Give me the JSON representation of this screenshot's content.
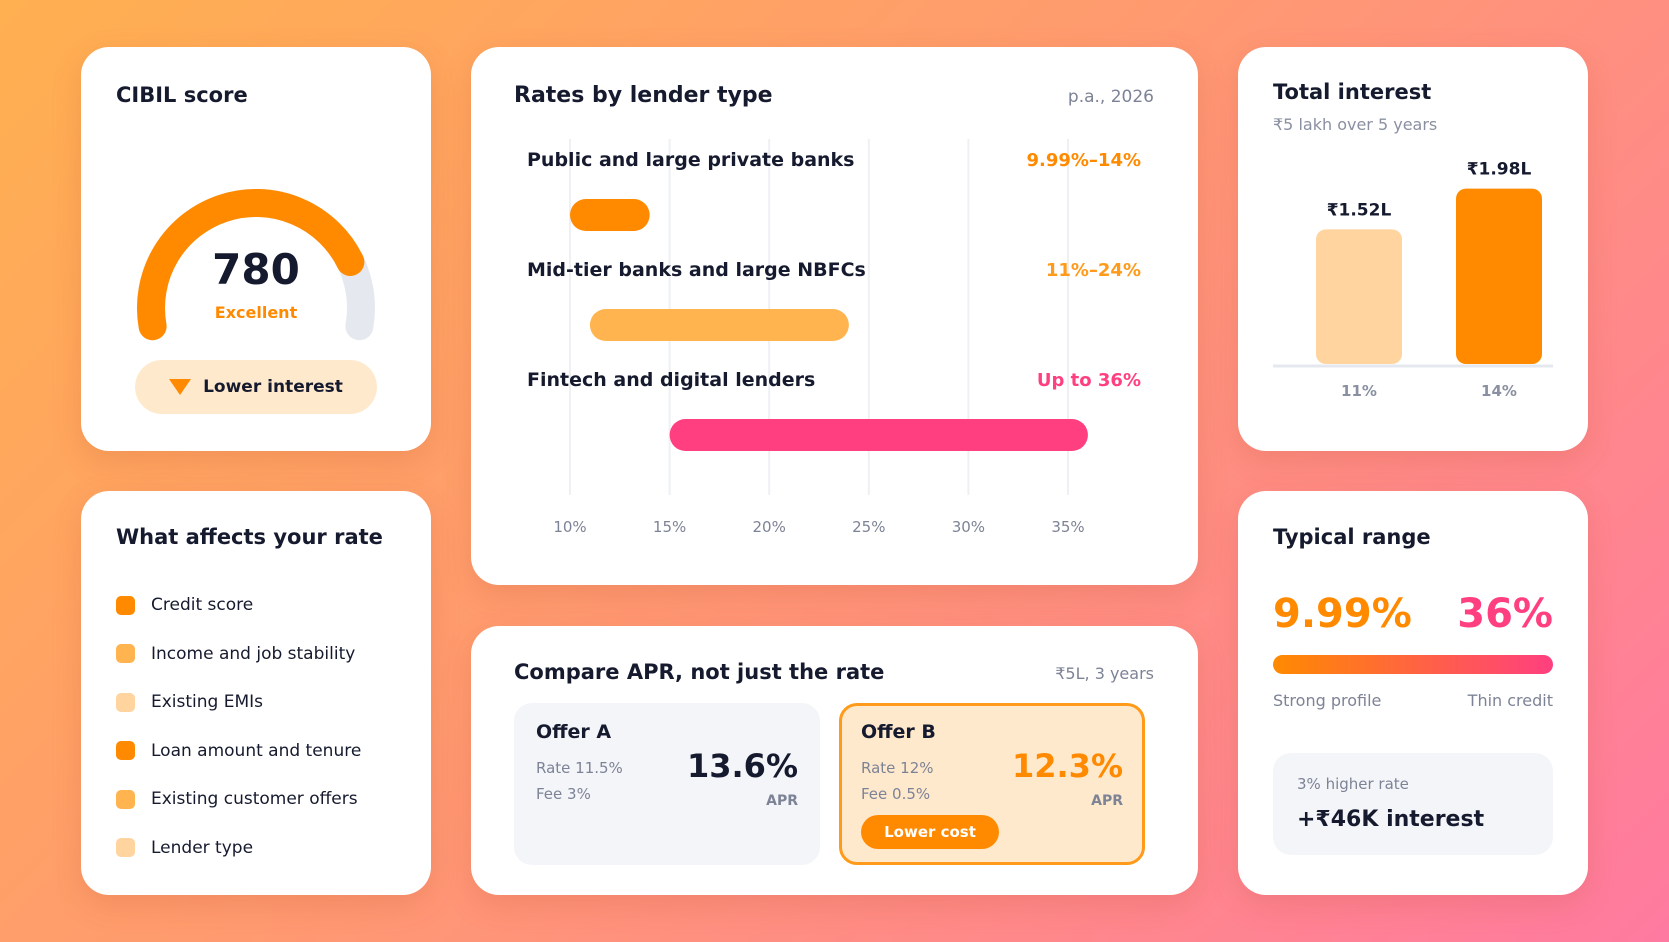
{
  "cibil": {
    "title": "CIBIL score",
    "score": "780",
    "score_fraction": 0.82,
    "rating": "Excellent",
    "badge_label": "Lower interest"
  },
  "factors": {
    "title": "What affects your rate",
    "items": [
      {
        "label": "Credit score",
        "color": "#ff8a00"
      },
      {
        "label": "Income and job stability",
        "color": "#ffb44f"
      },
      {
        "label": "Existing EMIs",
        "color": "#ffd49e"
      },
      {
        "label": "Loan amount and tenure",
        "color": "#ff8a00"
      },
      {
        "label": "Existing customer offers",
        "color": "#ffb44f"
      },
      {
        "label": "Lender type",
        "color": "#ffd49e"
      }
    ]
  },
  "rates": {
    "title": "Rates by lender type",
    "subtitle": "p.a., 2026"
  },
  "chart_data": [
    {
      "type": "bar",
      "orientation": "horizontal-range",
      "title": "Rates by lender type",
      "subtitle": "p.a., 2026",
      "xlim": [
        10,
        35
      ],
      "ticks": [
        10,
        15,
        20,
        25,
        30,
        35
      ],
      "tick_labels": [
        "10%",
        "15%",
        "20%",
        "25%",
        "30%",
        "35%"
      ],
      "grid": true,
      "series": [
        {
          "category": "Public and large private banks",
          "start": 10,
          "end": 14,
          "label": "9.99%–14%",
          "color": "#ff8a00"
        },
        {
          "category": "Mid-tier banks and large NBFCs",
          "start": 11,
          "end": 24,
          "label": "11%–24%",
          "color": "#ffb44f"
        },
        {
          "category": "Fintech and digital lenders",
          "start": 15,
          "end": 36,
          "label": "Up to 36%",
          "color": "#ff3f80"
        }
      ]
    },
    {
      "type": "bar",
      "title": "Total interest",
      "subtitle": "₹5 lakh over 5 years",
      "categories": [
        "11%",
        "14%"
      ],
      "values": [
        1.52,
        1.98
      ],
      "value_labels": [
        "₹1.52L",
        "₹1.98L"
      ],
      "colors": [
        "#ffd49e",
        "#ff8a00"
      ],
      "ylim": [
        0,
        2.1
      ]
    }
  ],
  "apr": {
    "title": "Compare APR, not just the rate",
    "subtitle": "₹5L, 3 years",
    "offers": [
      {
        "name": "Offer A",
        "rate": "Rate 11.5%",
        "fee": "Fee 3%",
        "apr": "13.6%",
        "apr_label": "APR"
      },
      {
        "name": "Offer B",
        "rate": "Rate 12%",
        "fee": "Fee 0.5%",
        "apr": "12.3%",
        "apr_label": "APR",
        "badge": "Lower cost"
      }
    ]
  },
  "range": {
    "title": "Typical range",
    "low": "9.99%",
    "high": "36%",
    "low_label": "Strong profile",
    "high_label": "Thin credit",
    "note_line1": "3% higher rate",
    "note_line2": "+₹46K interest"
  },
  "colors": {
    "accent": "#ff8a00",
    "accent_light": "#ffb44f",
    "accent_pale": "#ffd49e",
    "pink": "#ff3f80",
    "text": "#161a2e",
    "muted": "#7d8396"
  }
}
